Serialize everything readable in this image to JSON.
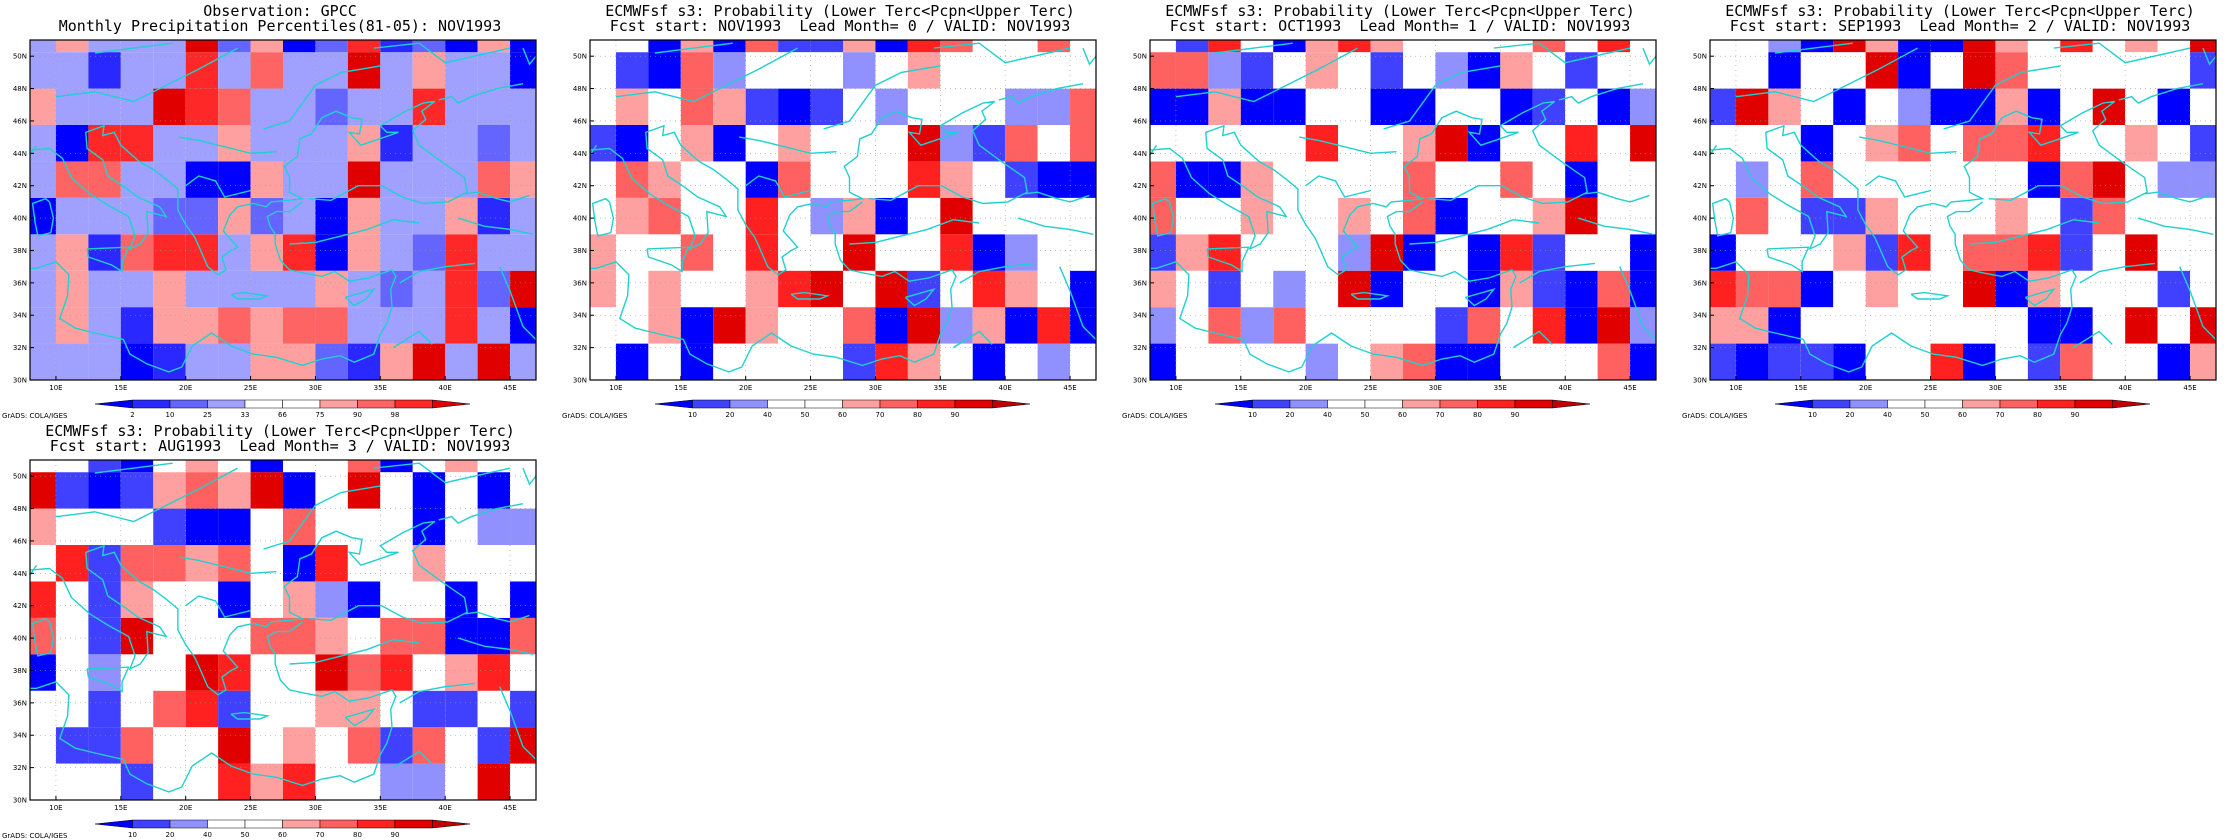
{
  "credit": "GrADS: COLA/IGES",
  "palette_forecast": [
    "#0000ff",
    "#4040ff",
    "#9090ff",
    "#ffffff",
    "#ffffff",
    "#ffa0a0",
    "#ff6060",
    "#ff2020",
    "#e00000",
    "#c00000"
  ],
  "palette_observation": [
    "#0000ff",
    "#2828ff",
    "#6464ff",
    "#a0a0ff",
    "#ffffff",
    "#ffffff",
    "#ffa0a0",
    "#ff6464",
    "#ff2828",
    "#e00000"
  ],
  "coast_color": "#20d0d0",
  "panels": [
    {
      "title1": "Observation: GPCC",
      "title2": "Monthly Precipitation Percentiles(81-05): NOV1993",
      "colorbar": [
        "2",
        "10",
        "25",
        "33",
        "66",
        "75",
        "90",
        "98"
      ],
      "kind": "obs"
    },
    {
      "title1": "ECMWFsf s3: Probability (Lower Terc<Pcpn<Upper Terc)",
      "title2": "Fcst start: NOV1993  Lead Month= 0 / VALID: NOV1993",
      "colorbar": [
        "10",
        "20",
        "40",
        "50",
        "60",
        "70",
        "80",
        "90"
      ],
      "kind": "fcst"
    },
    {
      "title1": "ECMWFsf s3: Probability (Lower Terc<Pcpn<Upper Terc)",
      "title2": "Fcst start: OCT1993  Lead Month= 1 / VALID: NOV1993",
      "colorbar": [
        "10",
        "20",
        "40",
        "50",
        "60",
        "70",
        "80",
        "90"
      ],
      "kind": "fcst"
    },
    {
      "title1": "ECMWFsf s3: Probability (Lower Terc<Pcpn<Upper Terc)",
      "title2": "Fcst start: SEP1993  Lead Month= 2 / VALID: NOV1993",
      "colorbar": [
        "10",
        "20",
        "40",
        "50",
        "60",
        "70",
        "80",
        "90"
      ],
      "kind": "fcst"
    },
    {
      "title1": "ECMWFsf s3: Probability (Lower Terc<Pcpn<Upper Terc)",
      "title2": "Fcst start: AUG1993  Lead Month= 3 / VALID: NOV1993",
      "colorbar": [
        "10",
        "20",
        "40",
        "50",
        "60",
        "70",
        "80",
        "90"
      ],
      "kind": "fcst"
    }
  ],
  "map": {
    "lon_range": [
      8,
      47
    ],
    "lat_range": [
      30,
      51
    ],
    "lon_ticks": [
      "10E",
      "15E",
      "20E",
      "25E",
      "30E",
      "35E",
      "40E",
      "45E"
    ],
    "lon_tick_values": [
      10,
      15,
      20,
      25,
      30,
      35,
      40,
      45
    ],
    "lat_ticks": [
      "30N",
      "32N",
      "34N",
      "36N",
      "38N",
      "40N",
      "42N",
      "44N",
      "46N",
      "48N",
      "50N"
    ],
    "lat_tick_values": [
      30,
      32,
      34,
      36,
      38,
      40,
      42,
      44,
      46,
      48,
      50
    ],
    "grid_lon": [
      7.5,
      47.5,
      2.5
    ],
    "grid_lat": [
      30,
      51,
      2.25
    ]
  }
}
